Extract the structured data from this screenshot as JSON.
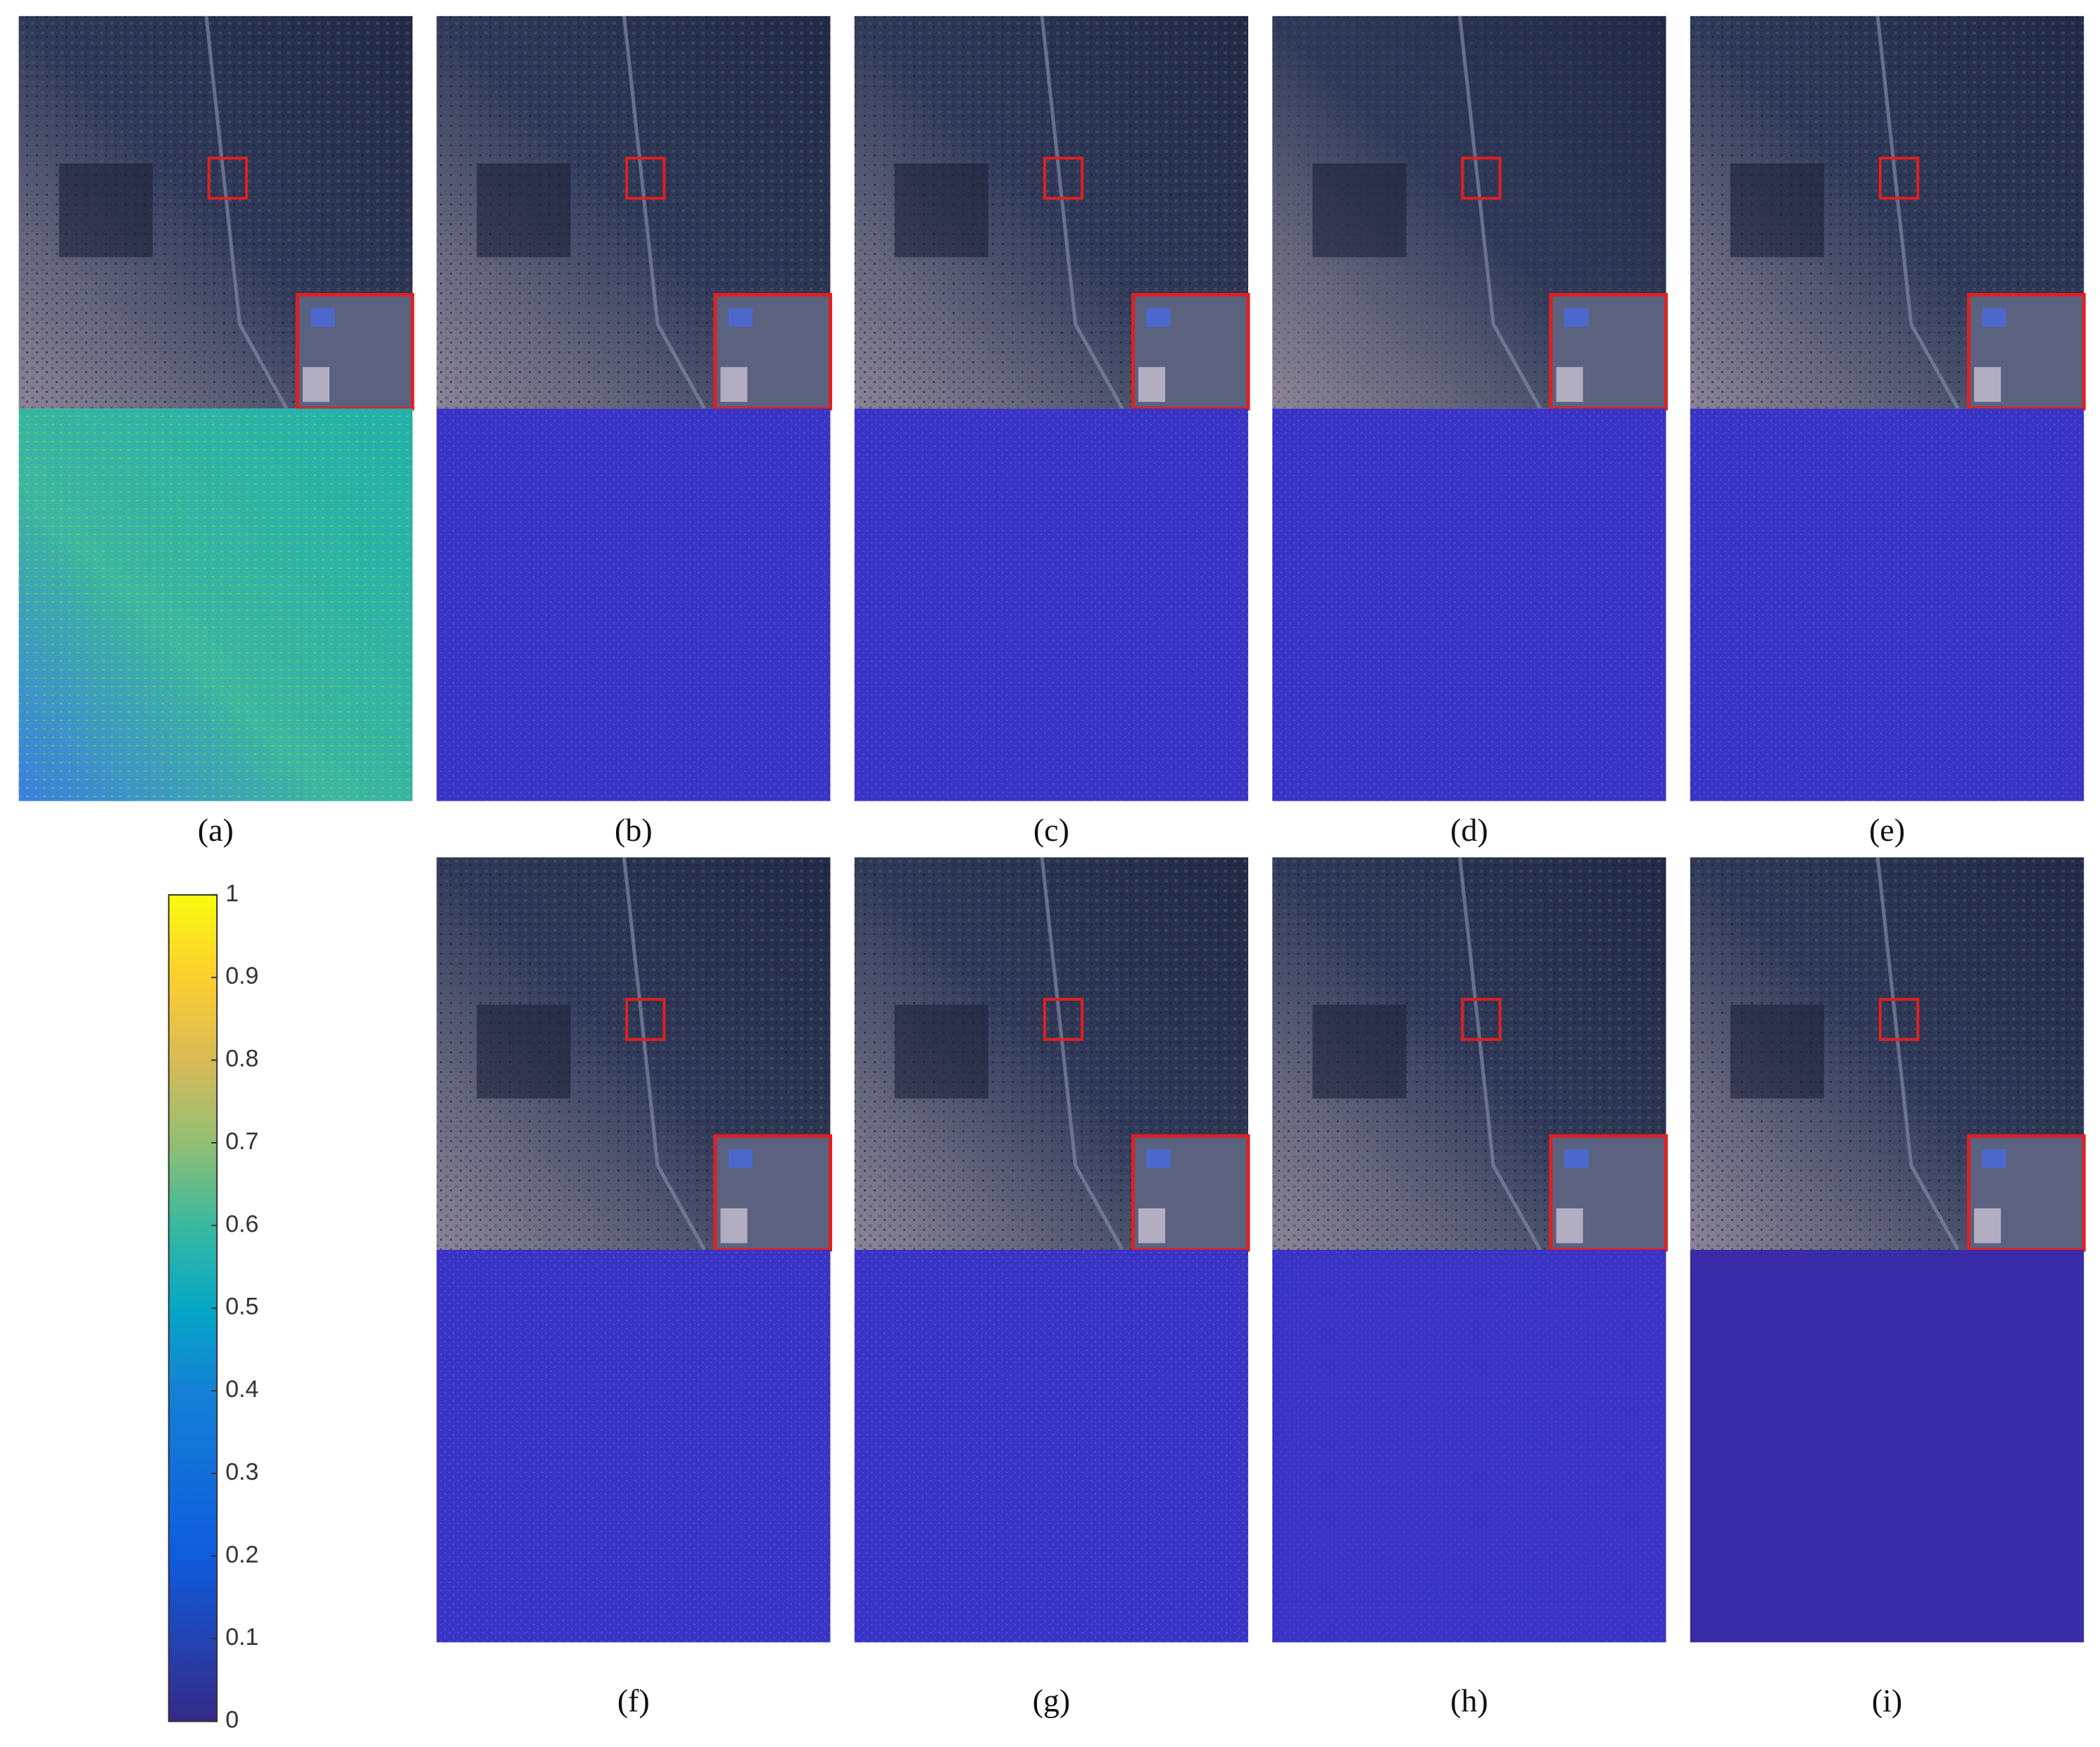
{
  "panels": [
    {
      "label": "(a)"
    },
    {
      "label": "(b)"
    },
    {
      "label": "(c)"
    },
    {
      "label": "(d)"
    },
    {
      "label": "(e)"
    },
    {
      "label": "(f)"
    },
    {
      "label": "(g)"
    },
    {
      "label": "(h)"
    },
    {
      "label": "(i)"
    }
  ],
  "colorbar": {
    "lim": [
      0,
      1
    ],
    "ticks": [
      0,
      0.1,
      0.2,
      0.3,
      0.4,
      0.5,
      0.6,
      0.7,
      0.8,
      0.9,
      1
    ]
  }
}
